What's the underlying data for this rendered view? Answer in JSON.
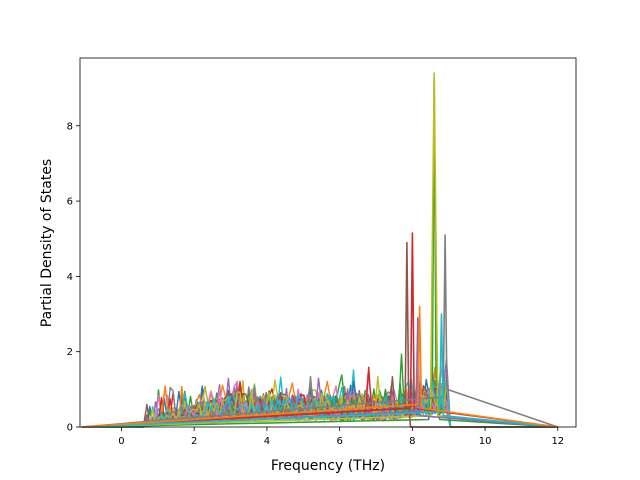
{
  "chart_data": {
    "type": "line",
    "title": "",
    "xlabel": "Frequency (THz)",
    "ylabel": "Partial Density of States",
    "xlim": [
      -1.14,
      12.5
    ],
    "ylim": [
      0,
      9.8
    ],
    "xticks": [
      0,
      2,
      4,
      6,
      8,
      10,
      12
    ],
    "yticks": [
      0,
      2,
      4,
      6,
      8
    ],
    "grid": false,
    "legend": "none",
    "series_count_approx": 40,
    "colors": [
      "#1f77b4",
      "#ff7f0e",
      "#2ca02c",
      "#d62728",
      "#9467bd",
      "#8c564b",
      "#e377c2",
      "#7f7f7f",
      "#bcbd22",
      "#17becf"
    ],
    "peak_series": [
      {
        "color": "#2ca02c",
        "x": [
          -1.1,
          8.45,
          8.55,
          8.6,
          8.65,
          8.75,
          12.0
        ],
        "y": [
          0,
          0.2,
          1.5,
          9.3,
          1.5,
          0.2,
          0
        ]
      },
      {
        "color": "#bcbd22",
        "x": [
          -1.1,
          8.5,
          8.6,
          8.7,
          12.0
        ],
        "y": [
          0,
          0.3,
          9.4,
          0.3,
          0
        ]
      },
      {
        "color": "#8c564b",
        "x": [
          -1.1,
          7.8,
          7.85,
          7.9,
          7.95,
          12.0
        ],
        "y": [
          0,
          0.5,
          4.9,
          0.6,
          0,
          0
        ]
      },
      {
        "color": "#d62728",
        "x": [
          -1.1,
          7.95,
          8.0,
          8.05,
          12.0
        ],
        "y": [
          0,
          0.5,
          5.15,
          0.5,
          0
        ]
      },
      {
        "color": "#7f7f7f",
        "x": [
          -1.1,
          8.85,
          8.9,
          8.95,
          12.0
        ],
        "y": [
          0,
          0.8,
          5.1,
          1.0,
          0
        ]
      },
      {
        "color": "#9467bd",
        "x": [
          -1.1,
          8.1,
          8.15,
          8.2,
          12.0
        ],
        "y": [
          0,
          0.4,
          2.9,
          0.3,
          0
        ]
      },
      {
        "color": "#17becf",
        "x": [
          -1.1,
          8.75,
          8.8,
          8.85,
          12.0
        ],
        "y": [
          0,
          0.4,
          3.0,
          0.3,
          0
        ]
      },
      {
        "color": "#ff7f0e",
        "x": [
          -1.1,
          8.15,
          8.2,
          8.25,
          12.0
        ],
        "y": [
          0,
          0.6,
          3.2,
          0.5,
          0
        ]
      }
    ]
  }
}
